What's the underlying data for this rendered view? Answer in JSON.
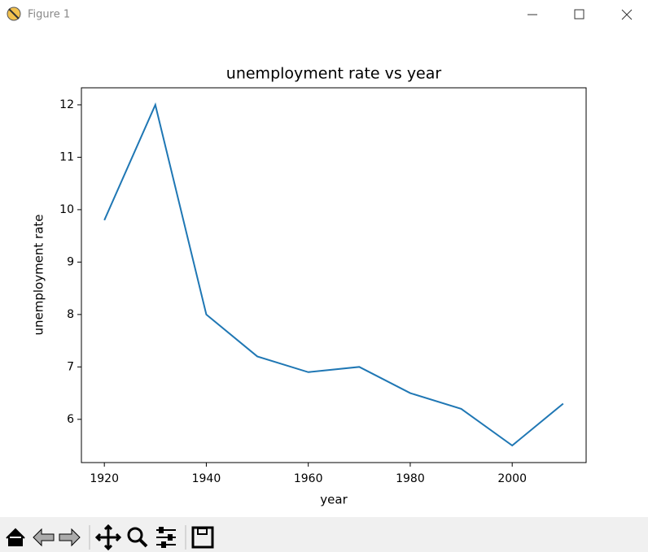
{
  "window": {
    "title": "Figure 1"
  },
  "chart_data": {
    "type": "line",
    "title": "unemployment rate vs year",
    "x_label": "year",
    "y_label": "unemployment rate",
    "x": [
      1920,
      1930,
      1940,
      1950,
      1960,
      1970,
      1980,
      1990,
      2000,
      2010
    ],
    "values": [
      9.8,
      12.0,
      8.0,
      7.2,
      6.9,
      7.0,
      6.5,
      6.2,
      5.5,
      6.3
    ],
    "color": "#1f77b4",
    "xlim": [
      1915.5,
      2014.5
    ],
    "xticks": [
      1920,
      1940,
      1960,
      1980,
      2000
    ],
    "ylim": [
      5.175,
      12.325
    ],
    "yticks": [
      6,
      7,
      8,
      9,
      10,
      11,
      12
    ],
    "grid": false
  }
}
